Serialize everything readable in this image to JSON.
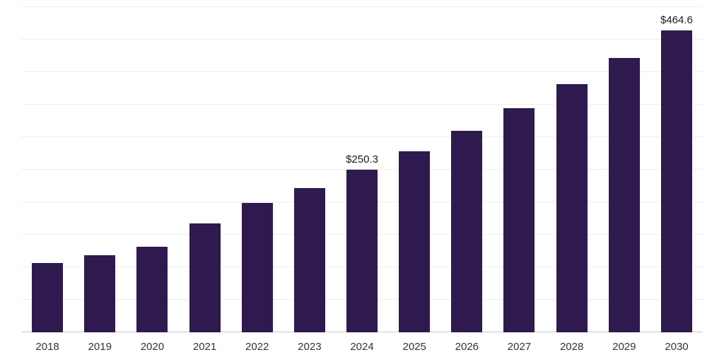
{
  "chart_data": {
    "type": "bar",
    "title": "",
    "xlabel": "",
    "ylabel": "",
    "categories": [
      "2018",
      "2019",
      "2020",
      "2021",
      "2022",
      "2023",
      "2024",
      "2025",
      "2026",
      "2027",
      "2028",
      "2029",
      "2030"
    ],
    "values": [
      106,
      118,
      131,
      167,
      199,
      222,
      250.3,
      278,
      310,
      345,
      382,
      422,
      464.6
    ],
    "data_labels": [
      "",
      "",
      "",
      "",
      "",
      "",
      "$250.3",
      "",
      "",
      "",
      "",
      "",
      "$464.6"
    ],
    "ylim": [
      0,
      500
    ],
    "gridline_interval": 50,
    "grid": "on",
    "legend": "none",
    "bar_color": "#2e1a4e",
    "background_color": "#ffffff",
    "gridline_color": "#ededed",
    "axis_line_color": "#c9c9c9",
    "tick_label_color": "#333333",
    "data_label_color": "#1a1a1a"
  }
}
